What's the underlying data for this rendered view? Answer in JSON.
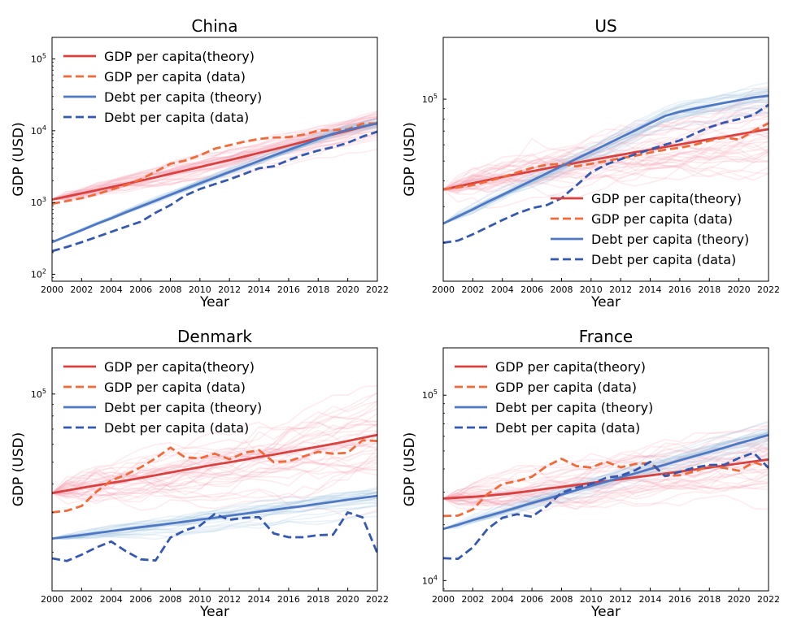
{
  "figure": {
    "type": "line-grid",
    "layout": "2x2"
  },
  "colors": {
    "gdp_theory": "#d9413f",
    "gdp_data": "#f06a3a",
    "debt_theory": "#4f78c4",
    "debt_data": "#3558b0",
    "gdp_sim": "#f4a6b4",
    "debt_sim": "#9fc3dd"
  },
  "chart_data": [
    {
      "type": "line",
      "title": "China",
      "xlabel": "Year",
      "ylabel": "GDP (USD)",
      "yscale": "log",
      "ylim": [
        80,
        200000
      ],
      "xlim": [
        2000,
        2022
      ],
      "xticks": [
        2000,
        2002,
        2004,
        2006,
        2008,
        2010,
        2012,
        2014,
        2016,
        2018,
        2020,
        2022
      ],
      "yticks": [
        {
          "value": 100,
          "base": "10",
          "exp": "2"
        },
        {
          "value": 1000,
          "base": "10",
          "exp": "3"
        },
        {
          "value": 10000,
          "base": "10",
          "exp": "4"
        },
        {
          "value": 100000,
          "base": "10",
          "exp": "5"
        }
      ],
      "legend_position": "upper left",
      "x": [
        2000,
        2001,
        2002,
        2003,
        2004,
        2005,
        2006,
        2007,
        2008,
        2009,
        2010,
        2011,
        2012,
        2013,
        2014,
        2015,
        2016,
        2017,
        2018,
        2019,
        2020,
        2021,
        2022
      ],
      "series": [
        {
          "name": "GDP per capita(theory)",
          "style": "solid",
          "color_key": "gdp_theory",
          "values": [
            1100,
            1210,
            1340,
            1480,
            1640,
            1820,
            2020,
            2250,
            2510,
            2800,
            3120,
            3490,
            3900,
            4370,
            4900,
            5500,
            6200,
            7000,
            7900,
            8900,
            10000,
            11300,
            12800
          ]
        },
        {
          "name": "GDP per capita (data)",
          "style": "dashed",
          "color_key": "gdp_data",
          "values": [
            960,
            1050,
            1150,
            1300,
            1510,
            1750,
            2100,
            2700,
            3470,
            3840,
            4550,
            5620,
            6300,
            7050,
            7700,
            8050,
            8150,
            8820,
            9980,
            10220,
            10500,
            12580,
            12700
          ]
        },
        {
          "name": "Debt per capita (theory)",
          "style": "solid",
          "color_key": "debt_theory",
          "values": [
            280,
            340,
            410,
            500,
            600,
            730,
            880,
            1060,
            1280,
            1540,
            1850,
            2220,
            2660,
            3180,
            3800,
            4530,
            5400,
            6430,
            7650,
            9100,
            10300,
            11500,
            12600
          ]
        },
        {
          "name": "Debt per capita (data)",
          "style": "dashed",
          "color_key": "debt_data",
          "values": [
            210,
            240,
            280,
            330,
            390,
            460,
            540,
            720,
            920,
            1250,
            1540,
            1800,
            2100,
            2500,
            3000,
            3200,
            3900,
            4600,
            5300,
            5900,
            6800,
            8300,
            9700
          ]
        }
      ]
    },
    {
      "type": "line",
      "title": "US",
      "xlabel": "Year",
      "ylabel": "GDP (USD)",
      "yscale": "log",
      "ylim": [
        13000,
        200000
      ],
      "xlim": [
        2000,
        2022
      ],
      "xticks": [
        2000,
        2002,
        2004,
        2006,
        2008,
        2010,
        2012,
        2014,
        2016,
        2018,
        2020,
        2022
      ],
      "yticks": [
        {
          "value": 100000,
          "base": "10",
          "exp": "5"
        }
      ],
      "legend_position": "lower right",
      "x": [
        2000,
        2001,
        2002,
        2003,
        2004,
        2005,
        2006,
        2007,
        2008,
        2009,
        2010,
        2011,
        2012,
        2013,
        2014,
        2015,
        2016,
        2017,
        2018,
        2019,
        2020,
        2021,
        2022
      ],
      "series": [
        {
          "name": "GDP per capita(theory)",
          "style": "solid",
          "color_key": "gdp_theory",
          "values": [
            36300,
            37600,
            39000,
            40400,
            41800,
            43200,
            44600,
            46100,
            47500,
            49000,
            50500,
            52000,
            53600,
            55200,
            56800,
            58500,
            60200,
            62000,
            63800,
            65500,
            67500,
            69500,
            71500
          ]
        },
        {
          "name": "GDP per capita (data)",
          "style": "dashed",
          "color_key": "gdp_data",
          "values": [
            36500,
            37200,
            38200,
            39800,
            41700,
            44000,
            46300,
            48000,
            48500,
            47100,
            48500,
            50000,
            51600,
            53100,
            55000,
            56800,
            58000,
            60000,
            62800,
            65100,
            63600,
            70200,
            76400
          ]
        },
        {
          "name": "Debt per capita (theory)",
          "style": "solid",
          "color_key": "debt_theory",
          "values": [
            24800,
            26900,
            29100,
            31600,
            34200,
            37100,
            40200,
            43600,
            47200,
            51200,
            55500,
            60100,
            65200,
            70600,
            76500,
            82900,
            87000,
            90000,
            93000,
            96000,
            99000,
            102000,
            104000
          ]
        },
        {
          "name": "Debt per capita (data)",
          "style": "dashed",
          "color_key": "debt_data",
          "values": [
            20000,
            20500,
            22000,
            23800,
            25800,
            27800,
            29500,
            30500,
            33000,
            38000,
            44000,
            48000,
            51000,
            54000,
            57000,
            60000,
            63000,
            68000,
            73000,
            77000,
            80000,
            84000,
            94000
          ]
        }
      ]
    },
    {
      "type": "line",
      "title": "Denmark",
      "xlabel": "Year",
      "ylabel": "GDP (USD)",
      "yscale": "log",
      "ylim": [
        13500,
        160000
      ],
      "xlim": [
        2000,
        2022
      ],
      "xticks": [
        2000,
        2002,
        2004,
        2006,
        2008,
        2010,
        2012,
        2014,
        2016,
        2018,
        2020,
        2022
      ],
      "yticks": [
        {
          "value": 100000,
          "base": "10",
          "exp": "5"
        }
      ],
      "legend_position": "upper left",
      "x": [
        2000,
        2001,
        2002,
        2003,
        2004,
        2005,
        2006,
        2007,
        2008,
        2009,
        2010,
        2011,
        2012,
        2013,
        2014,
        2015,
        2016,
        2017,
        2018,
        2019,
        2020,
        2021,
        2022
      ],
      "series": [
        {
          "name": "GDP per capita(theory)",
          "style": "solid",
          "color_key": "gdp_theory",
          "values": [
            36500,
            37500,
            38500,
            39500,
            40500,
            41500,
            42600,
            43800,
            45000,
            46300,
            47500,
            48800,
            50000,
            51300,
            52700,
            54000,
            55500,
            57000,
            58600,
            60200,
            62000,
            64000,
            66000
          ]
        },
        {
          "name": "GDP per capita (data)",
          "style": "dashed",
          "color_key": "gdp_data",
          "values": [
            30000,
            30500,
            32000,
            37000,
            41500,
            44000,
            47500,
            52000,
            58000,
            52500,
            52000,
            54500,
            51500,
            55000,
            56500,
            50000,
            50500,
            53000,
            55500,
            54500,
            55000,
            62500,
            62000
          ]
        },
        {
          "name": "Debt per capita (theory)",
          "style": "solid",
          "color_key": "debt_theory",
          "values": [
            23000,
            23400,
            23800,
            24300,
            24800,
            25300,
            25800,
            26300,
            26800,
            27300,
            27900,
            28400,
            29000,
            29600,
            30200,
            30800,
            31400,
            32000,
            32700,
            33400,
            34100,
            34800,
            35500
          ]
        },
        {
          "name": "Debt per capita (data)",
          "style": "dashed",
          "color_key": "debt_data",
          "values": [
            18800,
            18300,
            19500,
            21000,
            22300,
            20200,
            18600,
            18400,
            23200,
            25000,
            26200,
            29500,
            27800,
            28400,
            28600,
            24200,
            23300,
            23300,
            23800,
            23900,
            30000,
            28500,
            19800
          ]
        }
      ]
    },
    {
      "type": "line",
      "title": "France",
      "xlabel": "Year",
      "ylabel": "GDP (USD)",
      "yscale": "log",
      "ylim": [
        8800,
        180000
      ],
      "xlim": [
        2000,
        2022
      ],
      "xticks": [
        2000,
        2002,
        2004,
        2006,
        2008,
        2010,
        2012,
        2014,
        2016,
        2018,
        2020,
        2022
      ],
      "yticks": [
        {
          "value": 10000,
          "base": "10",
          "exp": "4"
        },
        {
          "value": 100000,
          "base": "10",
          "exp": "5"
        }
      ],
      "legend_position": "upper left",
      "x": [
        2000,
        2001,
        2002,
        2003,
        2004,
        2005,
        2006,
        2007,
        2008,
        2009,
        2010,
        2011,
        2012,
        2013,
        2014,
        2015,
        2016,
        2017,
        2018,
        2019,
        2020,
        2021,
        2022
      ],
      "series": [
        {
          "name": "GDP per capita(theory)",
          "style": "solid",
          "color_key": "gdp_theory",
          "values": [
            27700,
            28000,
            28300,
            28700,
            29200,
            29800,
            30500,
            31300,
            32000,
            32800,
            33600,
            34400,
            35200,
            36100,
            36900,
            37800,
            38700,
            39700,
            40700,
            41700,
            42800,
            43900,
            45000
          ]
        },
        {
          "name": "GDP per capita (data)",
          "style": "dashed",
          "color_key": "gdp_data",
          "values": [
            22300,
            22400,
            24200,
            29300,
            33200,
            34400,
            36300,
            41500,
            45400,
            41500,
            40700,
            43800,
            40800,
            42600,
            43100,
            36600,
            37000,
            38700,
            41600,
            40500,
            39100,
            43500,
            41000
          ]
        },
        {
          "name": "Debt per capita (theory)",
          "style": "solid",
          "color_key": "debt_theory",
          "values": [
            19000,
            20000,
            21200,
            22300,
            23500,
            24800,
            26200,
            27600,
            29100,
            30700,
            32400,
            34100,
            36000,
            37900,
            40000,
            42200,
            44500,
            46900,
            49400,
            52100,
            55000,
            57900,
            61000
          ]
        },
        {
          "name": "Debt per capita (data)",
          "style": "dashed",
          "color_key": "debt_data",
          "values": [
            13200,
            13100,
            15100,
            19000,
            21800,
            22800,
            22100,
            25200,
            29800,
            31700,
            33200,
            35800,
            36800,
            39400,
            43700,
            36600,
            38600,
            40700,
            42000,
            42100,
            45800,
            48900,
            40500
          ]
        }
      ]
    }
  ]
}
